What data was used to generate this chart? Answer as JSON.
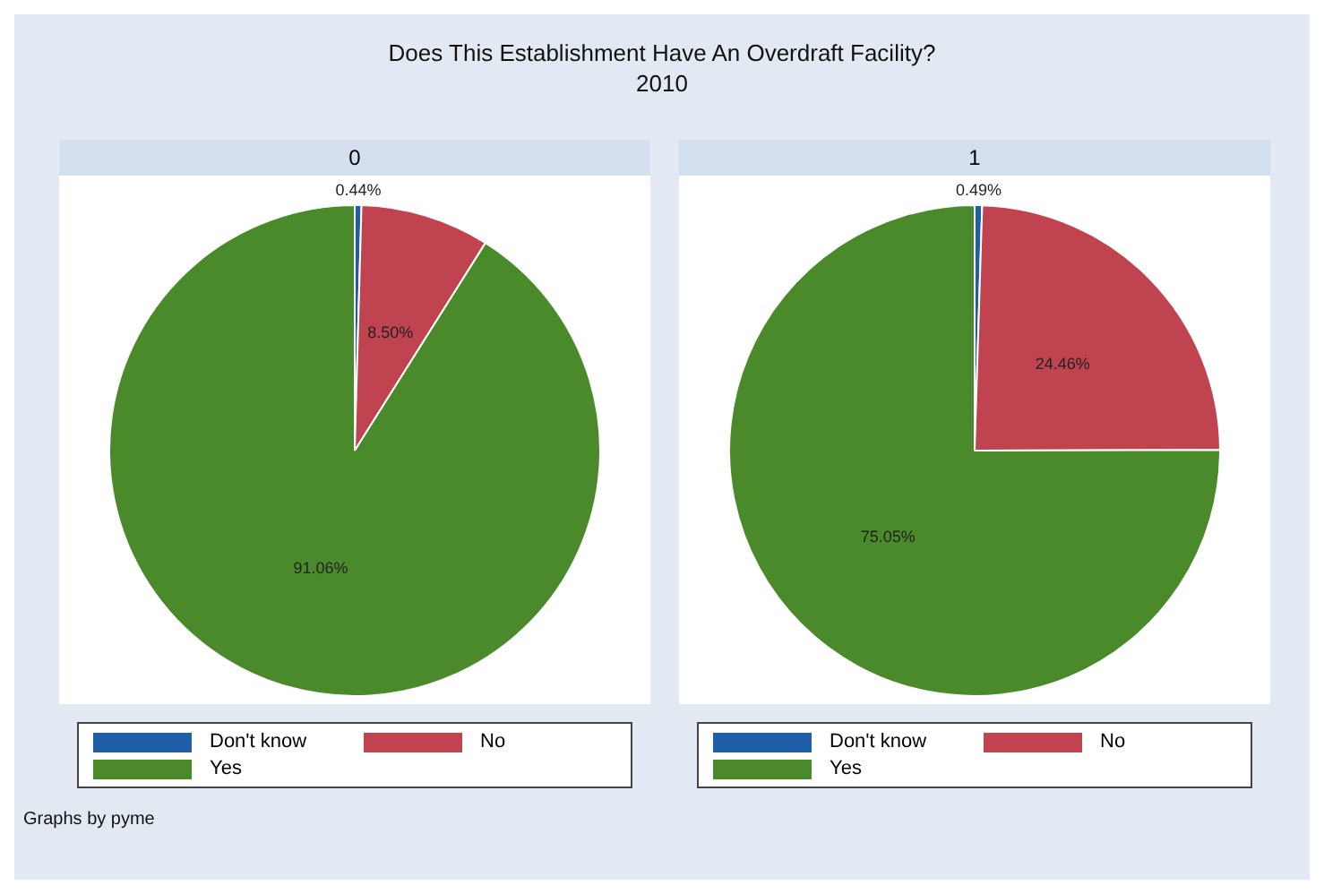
{
  "chart_data": [
    {
      "type": "other",
      "title": "Does This Establishment Have An Overdraft Facility?",
      "subtitle": "2010"
    },
    {
      "type": "pie",
      "title": "0",
      "categories": [
        "Don't know",
        "No",
        "Yes"
      ],
      "values": [
        0.44,
        8.5,
        91.06
      ],
      "colors": [
        "#1f5fa8",
        "#c0444f",
        "#4a8a2a"
      ],
      "value_labels": [
        "0.44%",
        "8.50%",
        "91.06%"
      ],
      "legend": "bottom",
      "annotations": [
        "Graphs by pyme"
      ]
    },
    {
      "type": "pie",
      "title": "1",
      "categories": [
        "Don't know",
        "No",
        "Yes"
      ],
      "values": [
        0.49,
        24.46,
        75.05
      ],
      "colors": [
        "#1f5fa8",
        "#c0444f",
        "#4a8a2a"
      ],
      "value_labels": [
        "0.49%",
        "24.46%",
        "75.05%"
      ],
      "legend": "bottom"
    }
  ]
}
